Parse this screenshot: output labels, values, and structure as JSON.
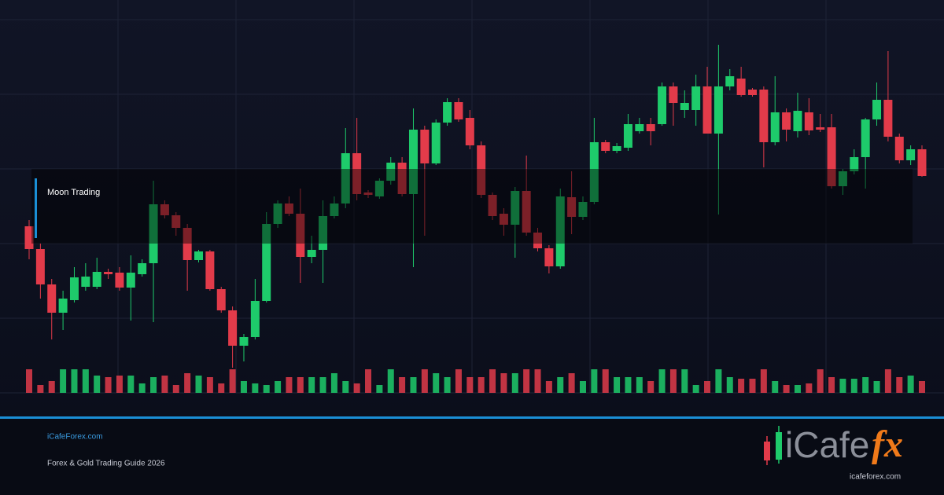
{
  "chart_data": {
    "type": "candlestick",
    "overlay_label": "Moon Trading",
    "up_color": "#1ecb6b",
    "down_color": "#e23b4a",
    "ylim": [
      0,
      475
    ],
    "yticks": [
      0,
      95,
      190,
      285,
      380,
      475
    ],
    "grid": true,
    "volume_ylim": [
      0,
      40
    ],
    "open": [
      212,
      183,
      138,
      102,
      118,
      135,
      135,
      154,
      153,
      134,
      151,
      165,
      240,
      226,
      210,
      169,
      180,
      132,
      105,
      60,
      71,
      117,
      215,
      241,
      228,
      173,
      182,
      225,
      241,
      305,
      255,
      250,
      270,
      293,
      253,
      335,
      292,
      344,
      370,
      350,
      315,
      252,
      228,
      214,
      257,
      204,
      184,
      161,
      249,
      224,
      243,
      319,
      308,
      312,
      333,
      342,
      342,
      390,
      360,
      360,
      390,
      330,
      390,
      400,
      386,
      386,
      319,
      357,
      333,
      357,
      338,
      338,
      263,
      282,
      300,
      348,
      373,
      326,
      296,
      310
    ],
    "high": [
      220,
      190,
      145,
      130,
      160,
      165,
      172,
      158,
      160,
      175,
      170,
      270,
      245,
      230,
      215,
      182,
      182,
      135,
      110,
      75,
      145,
      230,
      245,
      250,
      260,
      200,
      245,
      250,
      337,
      350,
      258,
      273,
      300,
      300,
      362,
      340,
      348,
      375,
      375,
      360,
      320,
      255,
      235,
      262,
      302,
      210,
      188,
      260,
      282,
      250,
      350,
      322,
      318,
      355,
      350,
      350,
      395,
      395,
      385,
      405,
      415,
      443,
      412,
      415,
      388,
      390,
      403,
      362,
      382,
      375,
      355,
      355,
      285,
      310,
      350,
      395,
      435,
      330,
      315,
      315
    ],
    "low": [
      170,
      120,
      68,
      80,
      115,
      130,
      132,
      145,
      130,
      92,
      148,
      90,
      222,
      200,
      130,
      166,
      130,
      102,
      32,
      40,
      68,
      115,
      210,
      225,
      140,
      165,
      140,
      222,
      235,
      245,
      248,
      247,
      265,
      250,
      160,
      200,
      290,
      340,
      345,
      310,
      248,
      220,
      200,
      172,
      200,
      180,
      152,
      158,
      202,
      220,
      240,
      305,
      305,
      308,
      330,
      315,
      340,
      340,
      350,
      340,
      330,
      227,
      385,
      377,
      377,
      287,
      315,
      320,
      325,
      328,
      332,
      260,
      252,
      278,
      260,
      340,
      320,
      292,
      290,
      275
    ],
    "close": [
      183,
      138,
      102,
      120,
      147,
      148,
      154,
      151,
      134,
      153,
      165,
      240,
      226,
      210,
      169,
      180,
      132,
      105,
      60,
      71,
      117,
      215,
      241,
      228,
      173,
      182,
      225,
      241,
      305,
      253,
      252,
      270,
      293,
      253,
      335,
      292,
      344,
      370,
      348,
      315,
      252,
      225,
      214,
      257,
      204,
      184,
      161,
      250,
      224,
      243,
      319,
      308,
      314,
      342,
      342,
      333,
      390,
      369,
      369,
      390,
      330,
      390,
      403,
      379,
      379,
      319,
      357,
      335,
      359,
      334,
      335,
      263,
      282,
      300,
      348,
      373,
      326,
      296,
      310,
      276
    ],
    "volume": [
      30,
      10,
      15,
      30,
      30,
      30,
      22,
      20,
      22,
      22,
      12,
      20,
      22,
      10,
      25,
      22,
      20,
      12,
      30,
      15,
      12,
      10,
      15,
      20,
      20,
      20,
      20,
      25,
      15,
      12,
      30,
      10,
      30,
      20,
      20,
      30,
      25,
      20,
      30,
      20,
      20,
      30,
      25,
      25,
      30,
      30,
      15,
      20,
      25,
      15,
      30,
      30,
      20,
      20,
      20,
      15,
      30,
      30,
      30,
      10,
      15,
      30,
      20,
      18,
      18,
      30,
      15,
      10,
      10,
      12,
      30,
      20,
      18,
      18,
      20,
      15,
      30,
      20,
      22,
      15
    ]
  },
  "footer": {
    "site": "iCafeForex.com",
    "subtitle": "Forex & Gold Trading Guide 2026"
  },
  "logo": {
    "word": "iCafe",
    "accent": "fx",
    "url": "icafeforex.com"
  }
}
